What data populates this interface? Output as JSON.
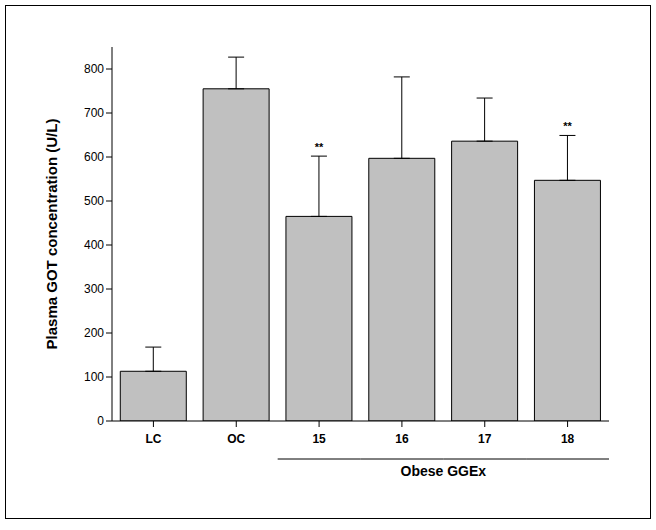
{
  "chart_data": {
    "type": "bar",
    "categories": [
      "LC",
      "OC",
      "15",
      "16",
      "17",
      "18"
    ],
    "values": [
      113,
      755,
      465,
      597,
      636,
      547
    ],
    "errors": [
      55,
      72,
      137,
      185,
      98,
      102
    ],
    "significance": [
      null,
      null,
      "**",
      null,
      null,
      "**"
    ],
    "group": {
      "label": "Obese GGEx",
      "categories": [
        "15",
        "16",
        "17",
        "18"
      ]
    },
    "y_label": "Plasma GOT concentration (U/L)",
    "ylim": [
      0,
      850
    ],
    "yticks": [
      0,
      100,
      200,
      300,
      400,
      500,
      600,
      700,
      800
    ],
    "color": "#c0c0c0",
    "grid": false
  }
}
